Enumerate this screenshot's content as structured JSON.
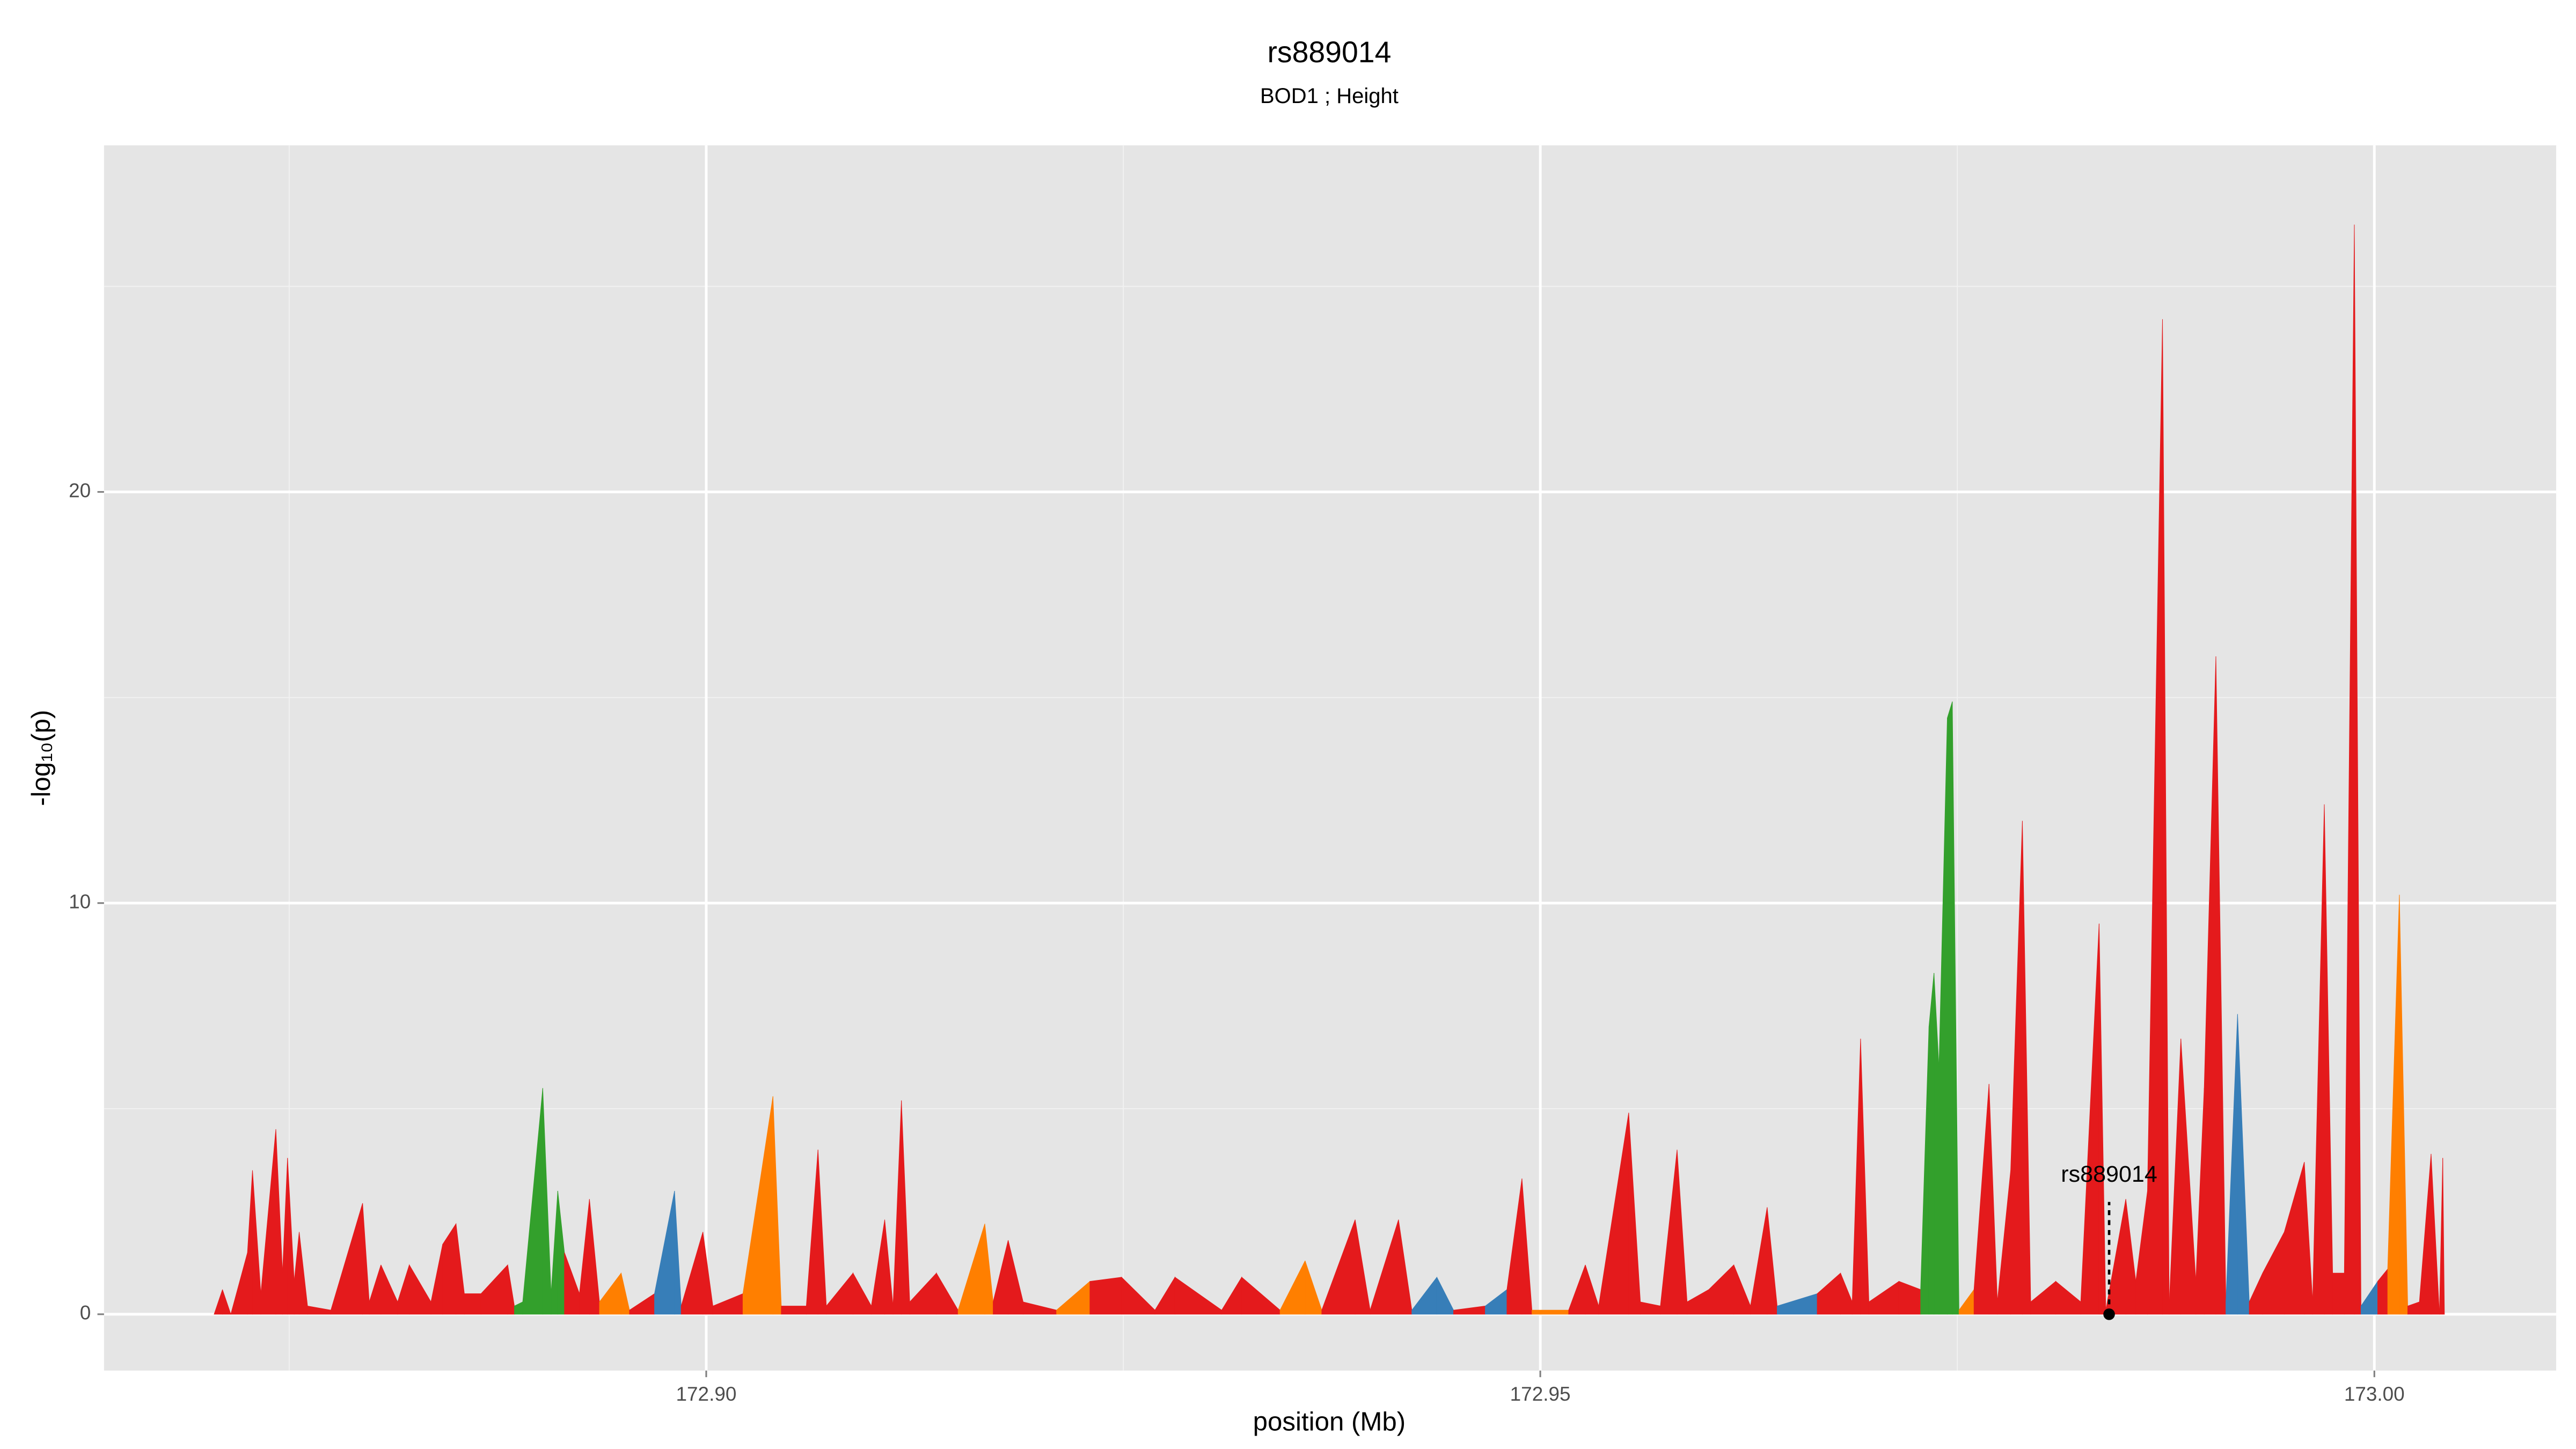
{
  "chart_data": {
    "type": "area",
    "title": "rs889014",
    "subtitle": "BOD1 ; Height",
    "xlabel": "position (Mb)",
    "ylabel": "-log₁₀(p)",
    "xlim": [
      172.8639,
      173.0109
    ],
    "ylim": [
      -1.37,
      28.43
    ],
    "xticks": [
      {
        "value": 172.9,
        "label": "172.90"
      },
      {
        "value": 172.95,
        "label": "172.95"
      },
      {
        "value": 173.0,
        "label": "173.00"
      }
    ],
    "yticks": [
      0,
      10,
      20
    ],
    "grid": true,
    "x": [
      172.8705,
      172.871,
      172.8715,
      172.8725,
      172.8728,
      172.8733,
      172.8742,
      172.8746,
      172.8749,
      172.8753,
      172.8756,
      172.8761,
      172.8775,
      172.8794,
      172.8798,
      172.8805,
      172.8815,
      172.8822,
      172.8835,
      172.8842,
      172.885,
      172.8855,
      172.8865,
      172.8881,
      172.8885,
      172.889,
      172.8902,
      172.8907,
      172.8911,
      172.8915,
      172.8924,
      172.893,
      172.8936,
      172.8949,
      172.8954,
      172.8969,
      172.8981,
      172.8985,
      172.8998,
      172.9004,
      172.9022,
      172.904,
      172.9045,
      172.906,
      172.9067,
      172.9072,
      172.9088,
      172.9099,
      172.9107,
      172.9112,
      172.9117,
      172.9122,
      172.9138,
      172.9151,
      172.9167,
      172.9172,
      172.9181,
      172.919,
      172.921,
      172.923,
      172.9249,
      172.9269,
      172.9281,
      172.9309,
      172.9321,
      172.9344,
      172.9359,
      172.9369,
      172.9389,
      172.9398,
      172.9415,
      172.9423,
      172.9438,
      172.9448,
      172.9467,
      172.948,
      172.9489,
      172.9495,
      172.9517,
      172.9527,
      172.9535,
      172.9553,
      172.956,
      172.9572,
      172.9582,
      172.9588,
      172.9601,
      172.9616,
      172.9626,
      172.9636,
      172.9642,
      172.9666,
      172.968,
      172.9687,
      172.9692,
      172.9697,
      172.9715,
      172.9728,
      172.9733,
      172.9736,
      172.9739,
      172.9744,
      172.9747,
      172.9751,
      172.976,
      172.9769,
      172.9774,
      172.9782,
      172.9789,
      172.9794,
      172.9809,
      172.9824,
      172.9835,
      172.9839,
      172.9851,
      172.9857,
      172.9864,
      172.9873,
      172.9877,
      172.9884,
      172.9893,
      172.9898,
      172.9905,
      172.9911,
      172.9918,
      172.9925,
      172.9933,
      172.9946,
      172.9958,
      172.9963,
      172.997,
      172.9975,
      172.9982,
      172.9988,
      172.9992,
      173.0002,
      173.0008,
      173.0015,
      173.002,
      173.0027,
      173.0034,
      173.0039,
      173.0041,
      173.0042
    ],
    "values": [
      0,
      0.6,
      0,
      1.5,
      3.5,
      0.5,
      4.5,
      1,
      3.8,
      0.8,
      2,
      0.2,
      0.1,
      2.7,
      0.3,
      1.2,
      0.3,
      1.2,
      0.3,
      1.7,
      2.2,
      0.5,
      0.5,
      1.2,
      0.2,
      0.3,
      5.5,
      0.5,
      3,
      1.5,
      0.5,
      2.8,
      0.3,
      1,
      0.1,
      0.5,
      3,
      0.2,
      2,
      0.2,
      0.5,
      5.3,
      0.2,
      0.2,
      4,
      0.2,
      1,
      0.2,
      2.3,
      0.2,
      5.2,
      0.3,
      1,
      0.1,
      2.2,
      0.3,
      1.8,
      0.3,
      0.1,
      0.8,
      0.9,
      0.1,
      0.9,
      0.1,
      0.9,
      0.1,
      1.3,
      0.1,
      2.3,
      0.1,
      2.3,
      0.1,
      0.9,
      0.1,
      0.2,
      0.6,
      3.3,
      0.1,
      0.1,
      1.2,
      0.2,
      4.9,
      0.3,
      0.2,
      4,
      0.3,
      0.6,
      1.2,
      0.2,
      2.6,
      0.2,
      0.5,
      1,
      0.3,
      6.7,
      0.3,
      0.8,
      0.6,
      7,
      8.3,
      6,
      14.5,
      14.9,
      0.1,
      0.6,
      5.6,
      0.3,
      3.5,
      12,
      0.3,
      0.8,
      0.3,
      9.5,
      0.1,
      2.8,
      0.8,
      3,
      24.2,
      0.2,
      6.7,
      0.8,
      5.5,
      16,
      0.3,
      7.3,
      0.3,
      1,
      2,
      3.7,
      0.3,
      12.4,
      1,
      1,
      26.5,
      0.2,
      0.8,
      1.1,
      10.2,
      0.2,
      0.3,
      3.9,
      0,
      3.8,
      0
    ],
    "colors": [
      "#e41a1c",
      "#e41a1c",
      "#e41a1c",
      "#e41a1c",
      "#e41a1c",
      "#e41a1c",
      "#e41a1c",
      "#e41a1c",
      "#e41a1c",
      "#e41a1c",
      "#e41a1c",
      "#e41a1c",
      "#e41a1c",
      "#e41a1c",
      "#e41a1c",
      "#e41a1c",
      "#e41a1c",
      "#e41a1c",
      "#e41a1c",
      "#e41a1c",
      "#e41a1c",
      "#e41a1c",
      "#e41a1c",
      "#e41a1c",
      "#33a02c",
      "#33a02c",
      "#33a02c",
      "#33a02c",
      "#33a02c",
      "#e41a1c",
      "#e41a1c",
      "#e41a1c",
      "#e41a1c",
      "#ff7f00",
      "#e41a1c",
      "#e41a1c",
      "#377eb8",
      "#e41a1c",
      "#e41a1c",
      "#e41a1c",
      "#e41a1c",
      "#ff7f00",
      "#e41a1c",
      "#e41a1c",
      "#e41a1c",
      "#e41a1c",
      "#e41a1c",
      "#377eb8",
      "#e41a1c",
      "#e41a1c",
      "#e41a1c",
      "#e41a1c",
      "#e41a1c",
      "#e41a1c",
      "#ff7f00",
      "#e41a1c",
      "#e41a1c",
      "#e41a1c",
      "#ff7f00",
      "#ff7f00",
      "#e41a1c",
      "#e41a1c",
      "#e41a1c",
      "#e41a1c",
      "#e41a1c",
      "#e41a1c",
      "#ff7f00",
      "#e41a1c",
      "#e41a1c",
      "#e41a1c",
      "#e41a1c",
      "#e41a1c",
      "#377eb8",
      "#e41a1c",
      "#e41a1c",
      "#377eb8",
      "#e41a1c",
      "#e41a1c",
      "#ff7f00",
      "#e41a1c",
      "#e41a1c",
      "#e41a1c",
      "#e41a1c",
      "#e41a1c",
      "#e41a1c",
      "#e41a1c",
      "#e41a1c",
      "#e41a1c",
      "#e41a1c",
      "#e41a1c",
      "#e41a1c",
      "#377eb8",
      "#e41a1c",
      "#ff7f00",
      "#e41a1c",
      "#e41a1c",
      "#e41a1c",
      "#e41a1c",
      "#33a02c",
      "#33a02c",
      "#33a02c",
      "#33a02c",
      "#33a02c",
      "#e41a1c",
      "#ff7f00",
      "#e41a1c",
      "#e41a1c",
      "#e41a1c",
      "#e41a1c",
      "#e41a1c",
      "#e41a1c",
      "#e41a1c",
      "#e41a1c",
      "#e41a1c",
      "#e41a1c",
      "#e41a1c",
      "#e41a1c",
      "#e41a1c",
      "#ff7f00",
      "#e41a1c",
      "#e41a1c",
      "#e41a1c",
      "#e41a1c",
      "#e41a1c",
      "#377eb8",
      "#e41a1c",
      "#e41a1c",
      "#e41a1c",
      "#e41a1c",
      "#e41a1c",
      "#e41a1c",
      "#e41a1c",
      "#e41a1c",
      "#e41a1c",
      "#e41a1c",
      "#377eb8",
      "#e41a1c",
      "#ff7f00",
      "#e41a1c",
      "#e41a1c",
      "#e41a1c",
      "#377eb8",
      "#e41a1c",
      "#e41a1c"
    ],
    "annotations": [
      {
        "text": "rs889014",
        "x": 172.9841,
        "y": 0
      }
    ]
  }
}
